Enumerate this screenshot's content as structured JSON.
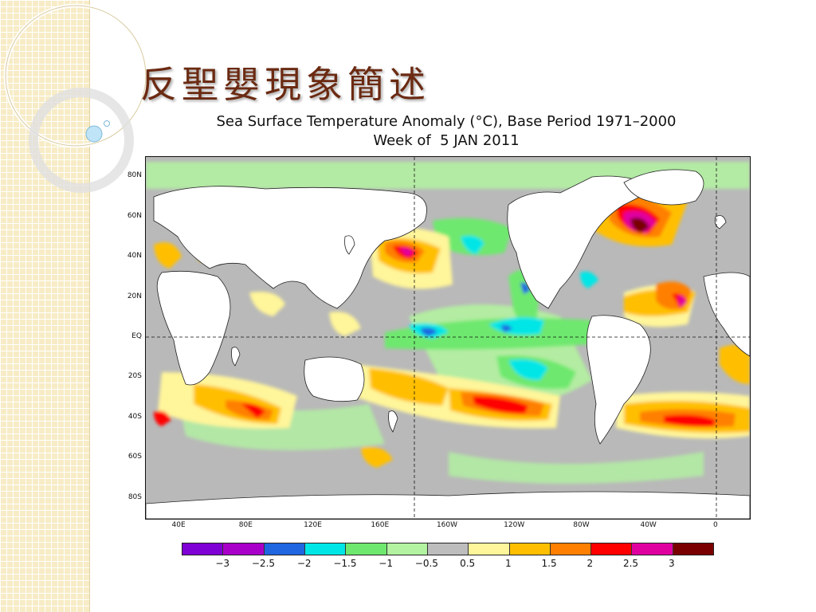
{
  "slide": {
    "title": "反聖嬰現象簡述"
  },
  "chart_data": {
    "type": "heatmap",
    "title": "Sea Surface Temperature Anomaly (°C), Base Period 1971–2000",
    "subtitle": "Week of  5 JAN 2011",
    "y_axis": {
      "tick_labels": [
        "80N",
        "60N",
        "40N",
        "20N",
        "EQ",
        "20S",
        "40S",
        "60S",
        "80S"
      ],
      "range": [
        "90N",
        "90S"
      ]
    },
    "x_axis": {
      "tick_labels": [
        "40E",
        "80E",
        "120E",
        "160E",
        "160W",
        "120W",
        "80W",
        "40W",
        "0"
      ],
      "range": [
        "20E",
        "20E"
      ]
    },
    "reference_lines": [
      "EQ",
      "180",
      "0"
    ],
    "colorbar": {
      "tick_labels": [
        "−3",
        "−2.5",
        "−2",
        "−1.5",
        "−1",
        "−0.5",
        "0.5",
        "1",
        "1.5",
        "2",
        "2.5",
        "3"
      ],
      "colors": [
        "#7f00d4",
        "#a800c8",
        "#1f66e0",
        "#00e6e6",
        "#6ee86e",
        "#b2f2a0",
        "#bdbdbd",
        "#fff59a",
        "#ffbf00",
        "#ff8000",
        "#ff0000",
        "#e000a0",
        "#7a0000"
      ]
    },
    "highlighted_regions": [
      {
        "location": "North Atlantic near Newfoundland",
        "anomaly": "2.5 to >3"
      },
      {
        "location": "Eastern Atlantic off West Africa",
        "anomaly": "2 to 3"
      },
      {
        "location": "Central North Pacific ~40N 170E",
        "anomaly": "2 to 3"
      },
      {
        "location": "South Pacific ~40S 150W",
        "anomaly": "2 to 3"
      },
      {
        "location": "South Atlantic ~40S 20W",
        "anomaly": "2 to 2.5"
      },
      {
        "location": "Southern Indian Ocean ~35S 60E–80E",
        "anomaly": "1.5 to 2.5"
      },
      {
        "location": "Equatorial central/eastern Pacific",
        "anomaly": "−1 to −2"
      },
      {
        "location": "Eastern North Pacific coast",
        "anomaly": "−1 to −2"
      }
    ]
  }
}
